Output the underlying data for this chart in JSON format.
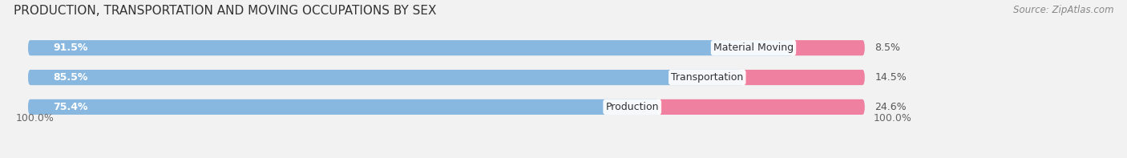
{
  "title": "PRODUCTION, TRANSPORTATION AND MOVING OCCUPATIONS BY SEX",
  "source": "Source: ZipAtlas.com",
  "categories": [
    "Material Moving",
    "Transportation",
    "Production"
  ],
  "male_values": [
    91.5,
    85.5,
    75.4
  ],
  "female_values": [
    8.5,
    14.5,
    24.6
  ],
  "male_color": "#88b8e0",
  "female_color": "#f080a0",
  "track_color": "#e0e4ea",
  "bg_color": "#f2f2f2",
  "title_fontsize": 11,
  "source_fontsize": 8.5,
  "label_fontsize": 9,
  "cat_fontsize": 9,
  "bar_height": 0.52,
  "left_label": "100.0%",
  "right_label": "100.0%"
}
